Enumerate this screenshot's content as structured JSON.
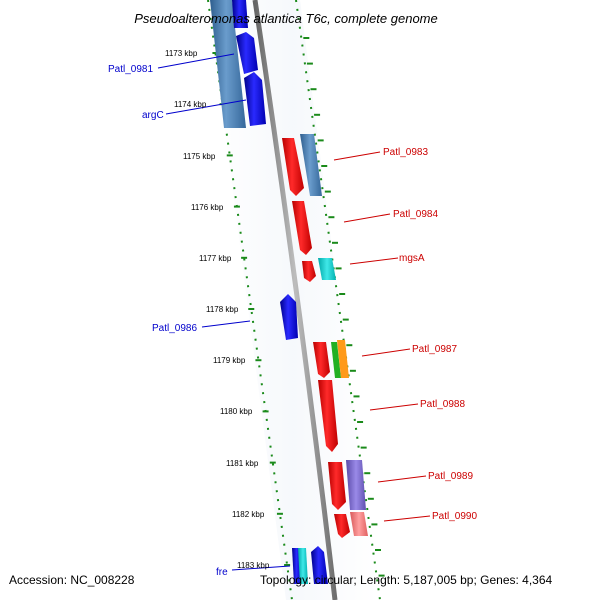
{
  "title": "Pseudoalteromonas atlantica T6c, complete genome",
  "accession": "Accession: NC_008228",
  "summary": "Topology: circular; Length: 5,187,005 bp; Genes: 4,364",
  "colors": {
    "backbone": "#888888",
    "tick": "#1a8a1a",
    "reverse_label": "#0000cc",
    "forward_label": "#cc0000"
  },
  "scale_labels": [
    "1173 kbp",
    "1174 kbp",
    "1175 kbp",
    "1176 kbp",
    "1177 kbp",
    "1178 kbp",
    "1179 kbp",
    "1180 kbp",
    "1181 kbp",
    "1182 kbp",
    "1183 kbp"
  ],
  "gene_labels": [
    {
      "text": "Patl_0981",
      "strand": "reverse"
    },
    {
      "text": "argC",
      "strand": "reverse"
    },
    {
      "text": "Patl_0983",
      "strand": "forward"
    },
    {
      "text": "Patl_0984",
      "strand": "forward"
    },
    {
      "text": "mgsA",
      "strand": "forward"
    },
    {
      "text": "Patl_0986",
      "strand": "reverse"
    },
    {
      "text": "Patl_0987",
      "strand": "forward"
    },
    {
      "text": "Patl_0988",
      "strand": "forward"
    },
    {
      "text": "Patl_0989",
      "strand": "forward"
    },
    {
      "text": "Patl_0990",
      "strand": "forward"
    },
    {
      "text": "fre",
      "strand": "reverse"
    }
  ]
}
